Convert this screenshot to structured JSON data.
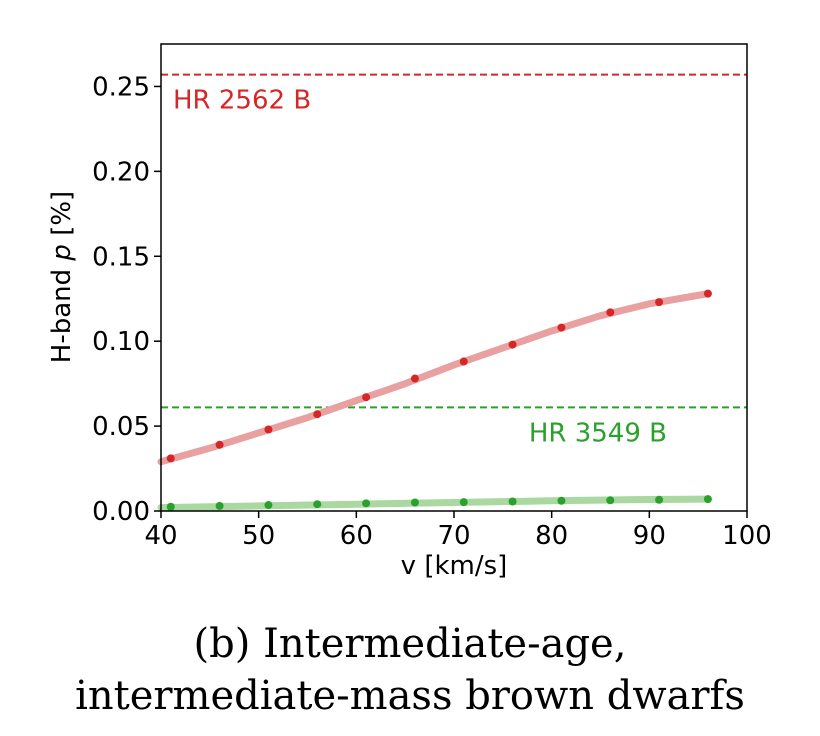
{
  "chart_data": {
    "type": "line",
    "xlabel": "v [km/s]",
    "ylabel_prefix": "H-band ",
    "ylabel_italic": "p",
    "ylabel_suffix": " [%]",
    "xlim": [
      40,
      100
    ],
    "ylim": [
      0.0,
      0.275
    ],
    "xticks": [
      40,
      50,
      60,
      70,
      80,
      90,
      100
    ],
    "yticks": [
      0.0,
      0.05,
      0.1,
      0.15,
      0.2,
      0.25
    ],
    "ytick_labels": [
      "0.00",
      "0.05",
      "0.10",
      "0.15",
      "0.20",
      "0.25"
    ],
    "grid": false,
    "series": [
      {
        "color": "#d62728",
        "curve_color": "#e8a0a0",
        "x": [
          41,
          46,
          51,
          56,
          61,
          66,
          71,
          76,
          81,
          86,
          91,
          96
        ],
        "values": [
          0.031,
          0.039,
          0.048,
          0.057,
          0.067,
          0.078,
          0.088,
          0.098,
          0.108,
          0.117,
          0.123,
          0.128
        ],
        "curve_x": [
          40,
          45,
          50,
          55,
          60,
          65,
          70,
          75,
          80,
          85,
          90,
          96
        ],
        "curve_values": [
          0.029,
          0.037,
          0.046,
          0.055,
          0.065,
          0.075,
          0.086,
          0.096,
          0.106,
          0.115,
          0.122,
          0.128
        ]
      },
      {
        "color": "#2ca02c",
        "curve_color": "#a9d8a1",
        "x": [
          41,
          46,
          51,
          56,
          61,
          66,
          71,
          76,
          81,
          86,
          91,
          96
        ],
        "values": [
          0.0025,
          0.003,
          0.0035,
          0.004,
          0.0045,
          0.005,
          0.0052,
          0.0056,
          0.006,
          0.0063,
          0.0066,
          0.007
        ],
        "curve_x": [
          40,
          50,
          60,
          70,
          80,
          90,
          96
        ],
        "curve_values": [
          0.002,
          0.003,
          0.004,
          0.005,
          0.006,
          0.0068,
          0.007
        ]
      }
    ],
    "hlines": [
      {
        "label": "HR 2562 B",
        "y": 0.257,
        "color": "#d62728"
      },
      {
        "label": "HR 3549 B",
        "y": 0.061,
        "color": "#2ca02c"
      }
    ]
  },
  "caption": {
    "line1": "(b) Intermediate-age,",
    "line2": "intermediate-mass brown dwarfs"
  }
}
